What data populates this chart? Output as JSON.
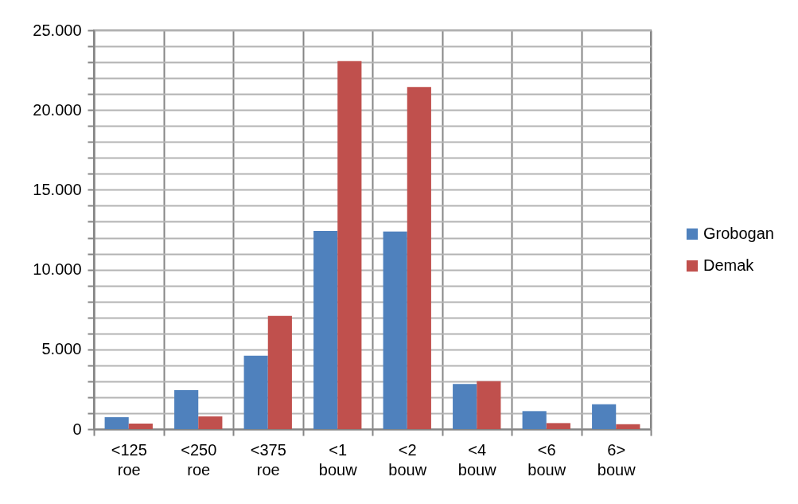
{
  "chart_data": {
    "type": "bar",
    "categories": [
      "<125 roe",
      "<250 roe",
      "<375 roe",
      "<1 bouw",
      "<2 bouw",
      "<4 bouw",
      "<6 bouw",
      "6> bouw"
    ],
    "series": [
      {
        "name": "Grobogan",
        "color": "#4f81bd",
        "values": [
          750,
          2450,
          4600,
          12430,
          12390,
          2830,
          1130,
          1560
        ]
      },
      {
        "name": "Demak",
        "color": "#c0504d",
        "values": [
          350,
          800,
          7100,
          23070,
          21440,
          3010,
          380,
          310
        ]
      }
    ],
    "ylim": [
      0,
      25000
    ],
    "yticks": [
      {
        "value": 0,
        "label": "0"
      },
      {
        "value": 1000,
        "label": null
      },
      {
        "value": 2000,
        "label": null
      },
      {
        "value": 3000,
        "label": null
      },
      {
        "value": 4000,
        "label": null
      },
      {
        "value": 5000,
        "label": "5.000"
      },
      {
        "value": 6000,
        "label": null
      },
      {
        "value": 7000,
        "label": null
      },
      {
        "value": 8000,
        "label": null
      },
      {
        "value": 9000,
        "label": null
      },
      {
        "value": 10000,
        "label": "10.000"
      },
      {
        "value": 11000,
        "label": null
      },
      {
        "value": 12000,
        "label": null
      },
      {
        "value": 13000,
        "label": null
      },
      {
        "value": 14000,
        "label": null
      },
      {
        "value": 15000,
        "label": "15.000"
      },
      {
        "value": 16000,
        "label": null
      },
      {
        "value": 17000,
        "label": null
      },
      {
        "value": 18000,
        "label": null
      },
      {
        "value": 19000,
        "label": null
      },
      {
        "value": 20000,
        "label": "20.000"
      },
      {
        "value": 21000,
        "label": null
      },
      {
        "value": 22000,
        "label": null
      },
      {
        "value": 23000,
        "label": null
      },
      {
        "value": 24000,
        "label": null
      },
      {
        "value": 25000,
        "label": "25.000"
      }
    ],
    "grid": true,
    "legend": "right"
  }
}
